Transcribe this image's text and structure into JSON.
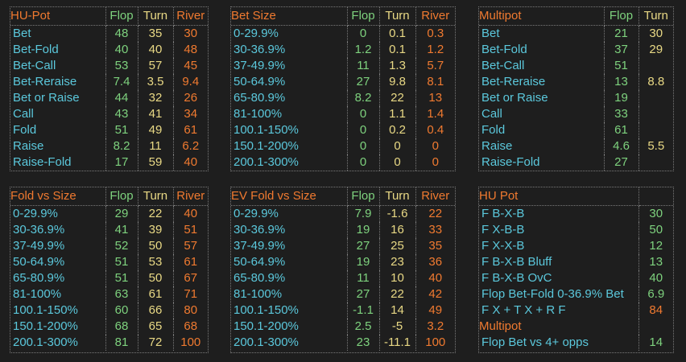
{
  "colors": {
    "background": "#1e1e1e",
    "label": "#5bc8dc",
    "flop": "#7ed27e",
    "turn": "#e9d985",
    "river": "#f07a30",
    "title": "#f07a30",
    "border": "#7a7a7a"
  },
  "hu_pot": {
    "title": "HU-Pot",
    "h1": "Flop",
    "h2": "Turn",
    "h3": "River",
    "rows": [
      {
        "label": "Bet",
        "flop": "48",
        "turn": "35",
        "river": "30"
      },
      {
        "label": "Bet-Fold",
        "flop": "40",
        "turn": "40",
        "river": "48"
      },
      {
        "label": "Bet-Call",
        "flop": "53",
        "turn": "57",
        "river": "45"
      },
      {
        "label": "Bet-Reraise",
        "flop": "7.4",
        "turn": "3.5",
        "river": "9.4"
      },
      {
        "label": "Bet or Raise",
        "flop": "44",
        "turn": "32",
        "river": "26"
      },
      {
        "label": "Call",
        "flop": "43",
        "turn": "41",
        "river": "34"
      },
      {
        "label": "Fold",
        "flop": "51",
        "turn": "49",
        "river": "61"
      },
      {
        "label": "Raise",
        "flop": "8.2",
        "turn": "11",
        "river": "6.2"
      },
      {
        "label": "Raise-Fold",
        "flop": "17",
        "turn": "59",
        "river": "40"
      }
    ]
  },
  "bet_size": {
    "title": "Bet Size",
    "h1": "Flop",
    "h2": "Turn",
    "h3": "River",
    "rows": [
      {
        "label": "0-29.9%",
        "flop": "0",
        "turn": "0.1",
        "river": "0.3"
      },
      {
        "label": "30-36.9%",
        "flop": "1.2",
        "turn": "0.1",
        "river": "1.2"
      },
      {
        "label": "37-49.9%",
        "flop": "11",
        "turn": "1.3",
        "river": "5.7"
      },
      {
        "label": "50-64.9%",
        "flop": "27",
        "turn": "9.8",
        "river": "8.1"
      },
      {
        "label": "65-80.9%",
        "flop": "8.2",
        "turn": "22",
        "river": "13"
      },
      {
        "label": "81-100%",
        "flop": "0",
        "turn": "1.1",
        "river": "1.4"
      },
      {
        "label": "100.1-150%",
        "flop": "0",
        "turn": "0.2",
        "river": "0.4"
      },
      {
        "label": "150.1-200%",
        "flop": "0",
        "turn": "0",
        "river": "0"
      },
      {
        "label": "200.1-300%",
        "flop": "0",
        "turn": "0",
        "river": "0"
      }
    ]
  },
  "multipot": {
    "title": "Multipot",
    "h1": "Flop",
    "h2": "Turn",
    "rows": [
      {
        "label": "Bet",
        "flop": "21",
        "turn": "30"
      },
      {
        "label": "Bet-Fold",
        "flop": "37",
        "turn": "29"
      },
      {
        "label": "Bet-Call",
        "flop": "51",
        "turn": ""
      },
      {
        "label": "Bet-Reraise",
        "flop": "13",
        "turn": "8.8"
      },
      {
        "label": "Bet or Raise",
        "flop": "19",
        "turn": ""
      },
      {
        "label": "Call",
        "flop": "33",
        "turn": ""
      },
      {
        "label": "Fold",
        "flop": "61",
        "turn": ""
      },
      {
        "label": "Raise",
        "flop": "4.6",
        "turn": "5.5"
      },
      {
        "label": "Raise-Fold",
        "flop": "27",
        "turn": ""
      }
    ]
  },
  "fold_vs_size": {
    "title": "Fold vs Size",
    "h1": "Flop",
    "h2": "Turn",
    "h3": "River",
    "rows": [
      {
        "label": "0-29.9%",
        "flop": "29",
        "turn": "22",
        "river": "40"
      },
      {
        "label": "30-36.9%",
        "flop": "41",
        "turn": "39",
        "river": "51"
      },
      {
        "label": "37-49.9%",
        "flop": "52",
        "turn": "50",
        "river": "57"
      },
      {
        "label": "50-64.9%",
        "flop": "51",
        "turn": "53",
        "river": "61"
      },
      {
        "label": "65-80.9%",
        "flop": "51",
        "turn": "50",
        "river": "67"
      },
      {
        "label": "81-100%",
        "flop": "63",
        "turn": "61",
        "river": "71"
      },
      {
        "label": "100.1-150%",
        "flop": "60",
        "turn": "66",
        "river": "80"
      },
      {
        "label": "150.1-200%",
        "flop": "68",
        "turn": "65",
        "river": "68"
      },
      {
        "label": "200.1-300%",
        "flop": "81",
        "turn": "72",
        "river": "100"
      }
    ]
  },
  "ev_fold_vs_size": {
    "title": "EV Fold vs Size",
    "h1": "Flop",
    "h2": "Turn",
    "h3": "River",
    "rows": [
      {
        "label": "0-29.9%",
        "flop": "7.9",
        "turn": "-1.6",
        "river": "22"
      },
      {
        "label": "30-36.9%",
        "flop": "19",
        "turn": "16",
        "river": "33"
      },
      {
        "label": "37-49.9%",
        "flop": "27",
        "turn": "25",
        "river": "35"
      },
      {
        "label": "50-64.9%",
        "flop": "19",
        "turn": "23",
        "river": "36"
      },
      {
        "label": "65-80.9%",
        "flop": "11",
        "turn": "10",
        "river": "40"
      },
      {
        "label": "81-100%",
        "flop": "27",
        "turn": "22",
        "river": "42"
      },
      {
        "label": "100.1-150%",
        "flop": "-1.1",
        "turn": "14",
        "river": "49"
      },
      {
        "label": "150.1-200%",
        "flop": "2.5",
        "turn": "-5",
        "river": "3.2"
      },
      {
        "label": "200.1-300%",
        "flop": "23",
        "turn": "-11.1",
        "river": "100"
      }
    ]
  },
  "hu_pot_lines": {
    "title": "HU Pot",
    "rows": [
      {
        "label": "F B-X-B",
        "value": "30"
      },
      {
        "label": "F X-B-B",
        "value": "50"
      },
      {
        "label": "F X-X-B",
        "value": "12"
      },
      {
        "label": "F B-X-B Bluff",
        "value": "13"
      },
      {
        "label": "F B-X-B OvC",
        "value": "40"
      },
      {
        "label": "Flop Bet-Fold 0-36.9% Bet",
        "value": "6.9"
      },
      {
        "label": "F X + T X + R F",
        "value": "84"
      }
    ],
    "multipot_title": "Multipot",
    "multipot_rows": [
      {
        "label": "Flop Bet vs 4+ opps",
        "value": "14"
      }
    ]
  }
}
